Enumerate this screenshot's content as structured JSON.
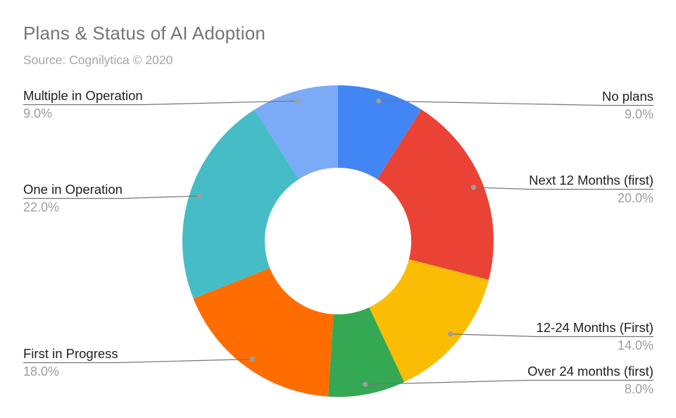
{
  "chart_data": {
    "type": "pie",
    "variant": "donut",
    "title": "Plans & Status of AI Adoption",
    "subtitle": "Source: Cognilytica © 2020",
    "start_angle_deg": 0,
    "direction": "clockwise",
    "hole_ratio": 0.47,
    "legend_position": "none",
    "label_style": "outside-with-leader-lines",
    "leader_line_color": "#757575",
    "leader_dot_color": "#9e9e9e",
    "slices": [
      {
        "label": "No plans",
        "value": 9,
        "display": "9.0%",
        "color": "#4285F4"
      },
      {
        "label": "Next 12 Months (first)",
        "value": 20,
        "display": "20.0%",
        "color": "#EA4335"
      },
      {
        "label": "12-24 Months (First)",
        "value": 14,
        "display": "14.0%",
        "color": "#FBBC04"
      },
      {
        "label": "Over 24 months (first)",
        "value": 8,
        "display": "8.0%",
        "color": "#34A853"
      },
      {
        "label": "First in Progress",
        "value": 18,
        "display": "18.0%",
        "color": "#FF6D00"
      },
      {
        "label": "One in Operation",
        "value": 22,
        "display": "22.0%",
        "color": "#46BDC6"
      },
      {
        "label": "Multiple in Operation",
        "value": 9,
        "display": "9.0%",
        "color": "#7BAAF7"
      }
    ]
  }
}
